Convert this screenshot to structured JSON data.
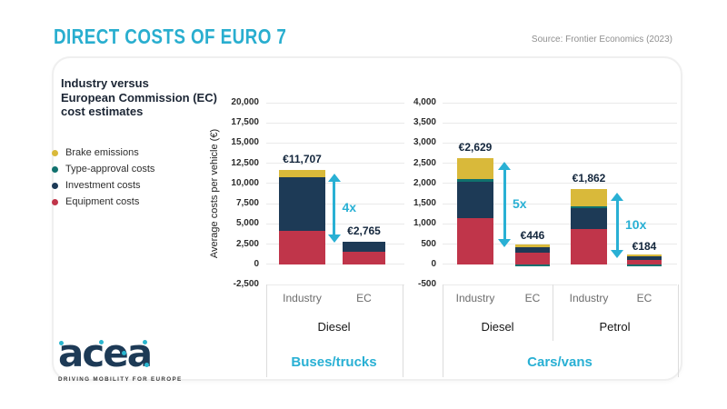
{
  "header": {
    "title": "DIRECT COSTS OF EURO 7",
    "source": "Source: Frontier Economics (2023)"
  },
  "panel": {
    "heading_lines": [
      "Industry versus",
      "European Commission (EC)",
      "cost estimates"
    ],
    "y_axis_title": "Average costs per vehicle (€)",
    "legend": [
      {
        "key": "brake",
        "label": "Brake emissions",
        "color": "#d9b93a"
      },
      {
        "key": "type_approval",
        "label": "Type-approval costs",
        "color": "#10716e"
      },
      {
        "key": "investment",
        "label": "Investment costs",
        "color": "#1d3a56"
      },
      {
        "key": "equipment",
        "label": "Equipment costs",
        "color": "#c0354a"
      }
    ]
  },
  "chart_data": [
    {
      "type": "bar",
      "stacked": true,
      "title": "Buses/trucks",
      "ylabel": "Average costs per vehicle (€)",
      "ylim": [
        -2500,
        20000
      ],
      "ytick_step": 2500,
      "ytick_labels": [
        "20,000",
        "17,500",
        "15,000",
        "12,500",
        "10,000",
        "7,500",
        "5,000",
        "2,500",
        "0",
        "-2,500"
      ],
      "groups": [
        {
          "label": "Diesel",
          "bars": [
            0,
            1
          ]
        }
      ],
      "bars": [
        {
          "label": "Industry",
          "total": 11707,
          "total_label": "€11,707",
          "baseline": 0,
          "segments": [
            {
              "key": "equipment",
              "value": 4100
            },
            {
              "key": "investment",
              "value": 6700
            },
            {
              "key": "brake",
              "value": 907
            }
          ]
        },
        {
          "label": "EC",
          "total": 2765,
          "total_label": "€2,765",
          "baseline": 0,
          "segments": [
            {
              "key": "equipment",
              "value": 1500
            },
            {
              "key": "investment",
              "value": 1265
            }
          ]
        }
      ],
      "comparisons": [
        {
          "from": 0,
          "to": 1,
          "label": "4x"
        }
      ]
    },
    {
      "type": "bar",
      "stacked": true,
      "title": "Cars/vans",
      "ylabel": "Average costs per vehicle (€)",
      "ylim": [
        -500,
        4000
      ],
      "ytick_step": 500,
      "ytick_labels": [
        "4,000",
        "3,500",
        "3,000",
        "2,500",
        "2,000",
        "1,500",
        "1,000",
        "500",
        "0",
        "-500"
      ],
      "groups": [
        {
          "label": "Diesel",
          "bars": [
            0,
            1
          ]
        },
        {
          "label": "Petrol",
          "bars": [
            2,
            3
          ]
        }
      ],
      "bars": [
        {
          "label": "Industry",
          "total": 2629,
          "total_label": "€2,629",
          "baseline": 0,
          "segments": [
            {
              "key": "equipment",
              "value": 1150
            },
            {
              "key": "investment",
              "value": 900
            },
            {
              "key": "type_approval",
              "value": 50
            },
            {
              "key": "brake",
              "value": 529
            }
          ]
        },
        {
          "label": "EC",
          "total": 446,
          "total_label": "€446",
          "baseline": -40,
          "segments": [
            {
              "key": "type_approval",
              "value": 40
            },
            {
              "key": "equipment",
              "value": 290
            },
            {
              "key": "investment",
              "value": 130
            },
            {
              "key": "brake",
              "value": 66
            }
          ]
        },
        {
          "label": "Industry",
          "total": 1862,
          "total_label": "€1,862",
          "baseline": 0,
          "segments": [
            {
              "key": "equipment",
              "value": 880
            },
            {
              "key": "investment",
              "value": 520
            },
            {
              "key": "type_approval",
              "value": 45
            },
            {
              "key": "brake",
              "value": 417
            }
          ]
        },
        {
          "label": "EC",
          "total": 184,
          "total_label": "€184",
          "baseline": -60,
          "segments": [
            {
              "key": "type_approval",
              "value": 60
            },
            {
              "key": "equipment",
              "value": 110
            },
            {
              "key": "investment",
              "value": 80
            },
            {
              "key": "brake",
              "value": 54
            }
          ]
        }
      ],
      "comparisons": [
        {
          "from": 0,
          "to": 1,
          "label": "5x"
        },
        {
          "from": 2,
          "to": 3,
          "label": "10x"
        }
      ]
    }
  ],
  "logo": {
    "wordmark": "acea",
    "tagline": "DRIVING MOBILITY FOR EUROPE"
  },
  "colors": {
    "accent": "#29b0d4",
    "navy": "#1d3a56"
  }
}
